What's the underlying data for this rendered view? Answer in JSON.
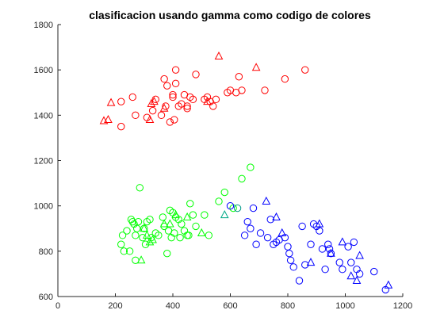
{
  "chart_data": {
    "type": "scatter",
    "title": "clasificacion usando gamma como codigo de colores",
    "xlabel": "",
    "ylabel": "",
    "xlim": [
      0,
      1200
    ],
    "ylim": [
      600,
      1800
    ],
    "xticks": [
      0,
      200,
      400,
      600,
      800,
      1000,
      1200
    ],
    "yticks": [
      600,
      800,
      1000,
      1200,
      1400,
      1600,
      1800
    ],
    "grid": false,
    "legend": "none",
    "axis_color": "#262626",
    "series": [
      {
        "color": "#ff0000",
        "marker": "circle",
        "points": [
          [
            220,
            1460
          ],
          [
            220,
            1350
          ],
          [
            260,
            1480
          ],
          [
            270,
            1400
          ],
          [
            310,
            1390
          ],
          [
            330,
            1420
          ],
          [
            340,
            1470
          ],
          [
            360,
            1400
          ],
          [
            370,
            1560
          ],
          [
            375,
            1440
          ],
          [
            380,
            1530
          ],
          [
            390,
            1370
          ],
          [
            400,
            1490
          ],
          [
            400,
            1480
          ],
          [
            405,
            1380
          ],
          [
            410,
            1540
          ],
          [
            410,
            1600
          ],
          [
            420,
            1440
          ],
          [
            430,
            1450
          ],
          [
            440,
            1490
          ],
          [
            450,
            1440
          ],
          [
            450,
            1430
          ],
          [
            460,
            1480
          ],
          [
            470,
            1470
          ],
          [
            480,
            1580
          ],
          [
            510,
            1470
          ],
          [
            520,
            1480
          ],
          [
            530,
            1460
          ],
          [
            540,
            1440
          ],
          [
            550,
            1470
          ],
          [
            590,
            1500
          ],
          [
            600,
            1510
          ],
          [
            620,
            1500
          ],
          [
            630,
            1570
          ],
          [
            640,
            1510
          ],
          [
            720,
            1510
          ],
          [
            790,
            1560
          ],
          [
            860,
            1600
          ]
        ]
      },
      {
        "color": "#ff0000",
        "marker": "triangle",
        "points": [
          [
            160,
            1375
          ],
          [
            175,
            1380
          ],
          [
            185,
            1455
          ],
          [
            320,
            1380
          ],
          [
            325,
            1450
          ],
          [
            335,
            1460
          ],
          [
            370,
            1430
          ],
          [
            520,
            1460
          ],
          [
            560,
            1660
          ],
          [
            690,
            1610
          ]
        ]
      },
      {
        "color": "#00ff00",
        "marker": "circle",
        "points": [
          [
            220,
            830
          ],
          [
            225,
            870
          ],
          [
            230,
            800
          ],
          [
            240,
            890
          ],
          [
            250,
            800
          ],
          [
            255,
            940
          ],
          [
            260,
            930
          ],
          [
            265,
            920
          ],
          [
            270,
            870
          ],
          [
            270,
            760
          ],
          [
            275,
            900
          ],
          [
            280,
            930
          ],
          [
            285,
            1080
          ],
          [
            295,
            860
          ],
          [
            300,
            900
          ],
          [
            305,
            830
          ],
          [
            310,
            930
          ],
          [
            320,
            940
          ],
          [
            325,
            860
          ],
          [
            340,
            880
          ],
          [
            350,
            870
          ],
          [
            365,
            950
          ],
          [
            370,
            910
          ],
          [
            380,
            790
          ],
          [
            385,
            890
          ],
          [
            390,
            980
          ],
          [
            395,
            860
          ],
          [
            400,
            970
          ],
          [
            405,
            880
          ],
          [
            410,
            950
          ],
          [
            420,
            940
          ],
          [
            425,
            860
          ],
          [
            430,
            920
          ],
          [
            440,
            890
          ],
          [
            450,
            870
          ],
          [
            455,
            870
          ],
          [
            460,
            1010
          ],
          [
            470,
            960
          ],
          [
            480,
            910
          ],
          [
            510,
            960
          ],
          [
            525,
            870
          ],
          [
            560,
            1020
          ],
          [
            580,
            1060
          ],
          [
            610,
            990
          ],
          [
            640,
            1120
          ],
          [
            670,
            1170
          ]
        ]
      },
      {
        "color": "#00ff00",
        "marker": "triangle",
        "points": [
          [
            290,
            760
          ],
          [
            300,
            900
          ],
          [
            310,
            870
          ],
          [
            320,
            840
          ],
          [
            330,
            850
          ],
          [
            370,
            920
          ],
          [
            390,
            920
          ],
          [
            410,
            960
          ],
          [
            450,
            950
          ],
          [
            500,
            880
          ]
        ]
      },
      {
        "color": "#0000ff",
        "marker": "circle",
        "points": [
          [
            600,
            1000
          ],
          [
            650,
            870
          ],
          [
            660,
            930
          ],
          [
            670,
            900
          ],
          [
            680,
            990
          ],
          [
            690,
            830
          ],
          [
            705,
            880
          ],
          [
            730,
            860
          ],
          [
            740,
            940
          ],
          [
            750,
            830
          ],
          [
            760,
            840
          ],
          [
            770,
            850
          ],
          [
            790,
            860
          ],
          [
            800,
            820
          ],
          [
            805,
            790
          ],
          [
            810,
            760
          ],
          [
            820,
            730
          ],
          [
            840,
            670
          ],
          [
            850,
            910
          ],
          [
            860,
            740
          ],
          [
            880,
            830
          ],
          [
            890,
            920
          ],
          [
            900,
            910
          ],
          [
            910,
            890
          ],
          [
            920,
            810
          ],
          [
            930,
            720
          ],
          [
            940,
            830
          ],
          [
            945,
            810
          ],
          [
            950,
            790
          ],
          [
            980,
            750
          ],
          [
            990,
            720
          ],
          [
            1010,
            820
          ],
          [
            1020,
            750
          ],
          [
            1030,
            840
          ],
          [
            1040,
            720
          ],
          [
            1050,
            700
          ],
          [
            1100,
            710
          ],
          [
            1140,
            630
          ]
        ]
      },
      {
        "color": "#0000ff",
        "marker": "triangle",
        "points": [
          [
            725,
            1020
          ],
          [
            760,
            950
          ],
          [
            780,
            880
          ],
          [
            880,
            750
          ],
          [
            910,
            920
          ],
          [
            950,
            790
          ],
          [
            990,
            840
          ],
          [
            1020,
            690
          ],
          [
            1040,
            670
          ],
          [
            1050,
            780
          ],
          [
            1150,
            650
          ]
        ]
      },
      {
        "color": "#00aa88",
        "marker": "triangle",
        "points": [
          [
            580,
            960
          ]
        ]
      },
      {
        "color": "#009988",
        "marker": "circle",
        "points": [
          [
            625,
            990
          ]
        ]
      }
    ]
  }
}
